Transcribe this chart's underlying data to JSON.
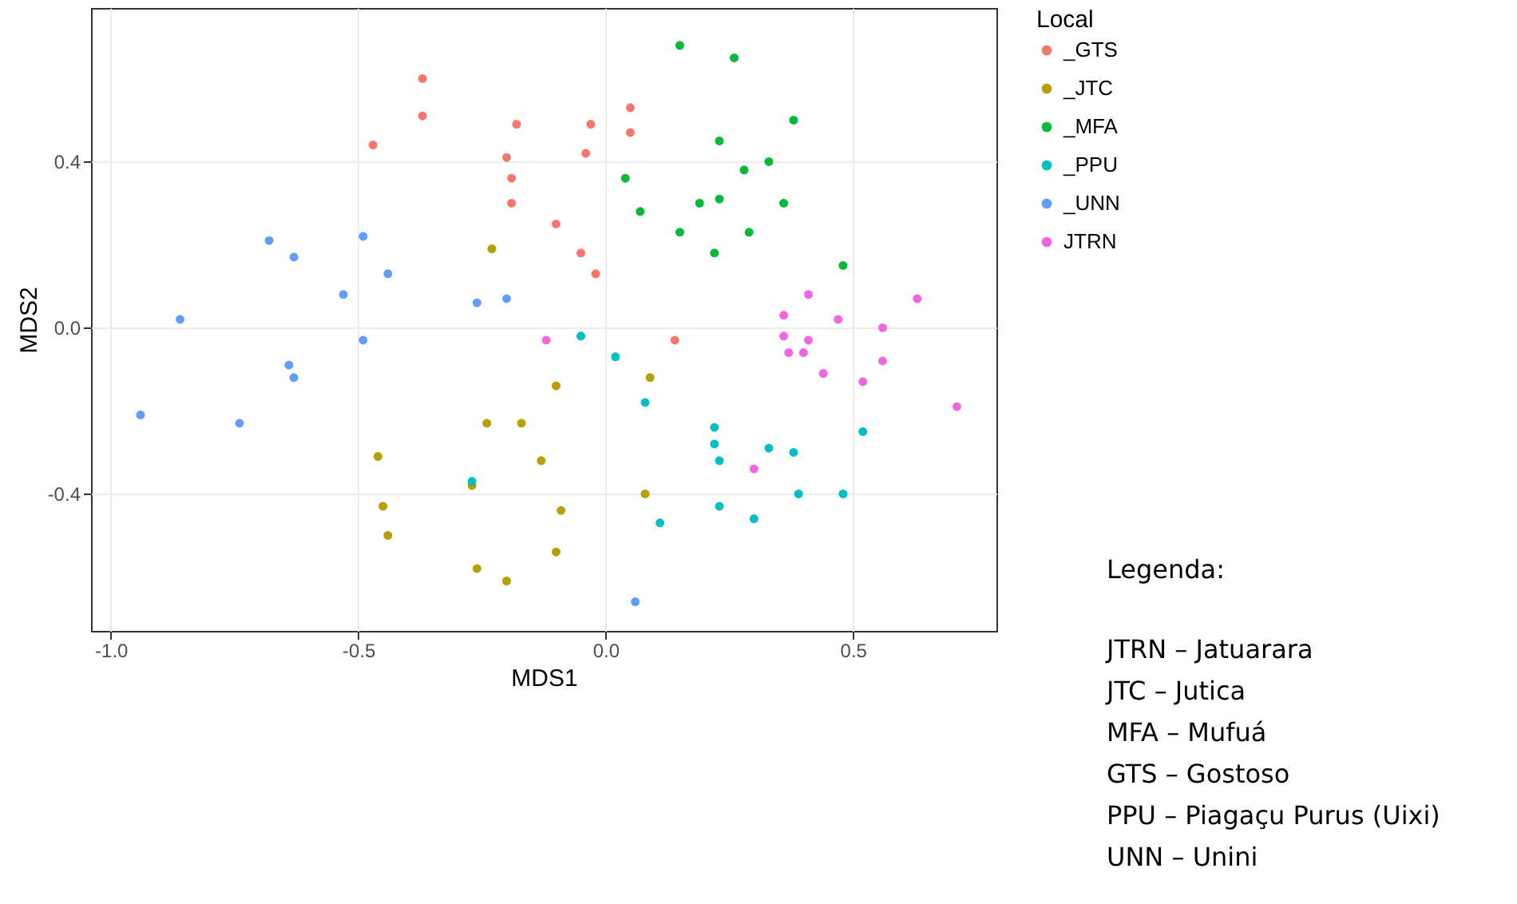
{
  "chart_data": {
    "type": "scatter",
    "xlabel": "MDS1",
    "ylabel": "MDS2",
    "legend_title": "Local",
    "legend": "right",
    "grid": true,
    "marker": "circle",
    "xlim": [
      -1.04,
      0.79
    ],
    "ylim": [
      -0.73,
      0.77
    ],
    "xticks": [
      {
        "value": -1,
        "label": "-1.0"
      },
      {
        "value": -0.5,
        "label": "-0.5"
      },
      {
        "value": 0,
        "label": "0.0"
      },
      {
        "value": 0.5,
        "label": "0.5"
      }
    ],
    "yticks": [
      {
        "value": -0.4,
        "label": "-0.4"
      },
      {
        "value": 0,
        "label": "0.0"
      },
      {
        "value": 0.4,
        "label": "0.4"
      }
    ],
    "series": [
      {
        "name": "_GTS",
        "color": "#f8766d",
        "x": [
          -0.37,
          -0.37,
          -0.47,
          -0.18,
          -0.2,
          -0.19,
          -0.19,
          -0.1,
          -0.03,
          -0.04,
          0.05,
          0.05,
          -0.05,
          -0.02,
          0.14
        ],
        "values": [
          0.6,
          0.51,
          0.44,
          0.49,
          0.41,
          0.36,
          0.3,
          0.25,
          0.49,
          0.42,
          0.53,
          0.47,
          0.18,
          0.13,
          -0.03
        ]
      },
      {
        "name": "_JTC",
        "color": "#b79f00",
        "x": [
          -0.23,
          -0.46,
          -0.45,
          -0.44,
          -0.27,
          -0.26,
          -0.2,
          -0.24,
          -0.17,
          -0.13,
          -0.1,
          -0.09,
          -0.1,
          0.09,
          0.08
        ],
        "values": [
          0.19,
          -0.31,
          -0.43,
          -0.5,
          -0.38,
          -0.58,
          -0.61,
          -0.23,
          -0.23,
          -0.32,
          -0.14,
          -0.44,
          -0.54,
          -0.12,
          -0.4
        ]
      },
      {
        "name": "_MFA",
        "color": "#00ba38",
        "x": [
          0.15,
          0.26,
          0.38,
          0.23,
          0.04,
          0.33,
          0.28,
          0.07,
          0.19,
          0.23,
          0.36,
          0.15,
          0.29,
          0.22,
          0.48
        ],
        "values": [
          0.68,
          0.65,
          0.5,
          0.45,
          0.36,
          0.4,
          0.38,
          0.28,
          0.3,
          0.31,
          0.3,
          0.23,
          0.23,
          0.18,
          0.15
        ]
      },
      {
        "name": "_PPU",
        "color": "#00bfc4",
        "x": [
          -0.05,
          0.02,
          0.08,
          0.22,
          0.22,
          0.23,
          0.33,
          0.38,
          0.52,
          -0.27,
          0.23,
          0.3,
          0.39,
          0.48,
          0.11
        ],
        "values": [
          -0.02,
          -0.07,
          -0.18,
          -0.24,
          -0.28,
          -0.32,
          -0.29,
          -0.3,
          -0.25,
          -0.37,
          -0.43,
          -0.46,
          -0.4,
          -0.4,
          -0.47
        ]
      },
      {
        "name": "_UNN",
        "color": "#619cff",
        "x": [
          -0.86,
          -0.94,
          -0.74,
          -0.68,
          -0.63,
          -0.53,
          -0.49,
          -0.44,
          -0.49,
          -0.64,
          -0.63,
          -0.26,
          -0.2,
          0.06
        ],
        "values": [
          0.02,
          -0.21,
          -0.23,
          0.21,
          0.17,
          0.08,
          0.22,
          0.13,
          -0.03,
          -0.09,
          -0.12,
          0.06,
          0.07,
          -0.66
        ]
      },
      {
        "name": "JTRN",
        "color": "#f564e3",
        "x": [
          -0.12,
          0.36,
          0.41,
          0.36,
          0.41,
          0.37,
          0.4,
          0.44,
          0.47,
          0.56,
          0.56,
          0.52,
          0.63,
          0.71,
          0.3
        ],
        "values": [
          -0.03,
          0.03,
          0.08,
          -0.02,
          -0.03,
          -0.06,
          -0.06,
          -0.11,
          0.02,
          0,
          -0.08,
          -0.13,
          0.07,
          -0.19,
          -0.34
        ]
      }
    ],
    "annotations": [
      "Legenda:",
      "JTRN – Jatuarara",
      "JTC – Jutica",
      "MFA – Mufuá",
      "GTS – Gostoso",
      "PPU – Piagaçu Purus (Uixi)",
      "UNN – Unini"
    ]
  }
}
